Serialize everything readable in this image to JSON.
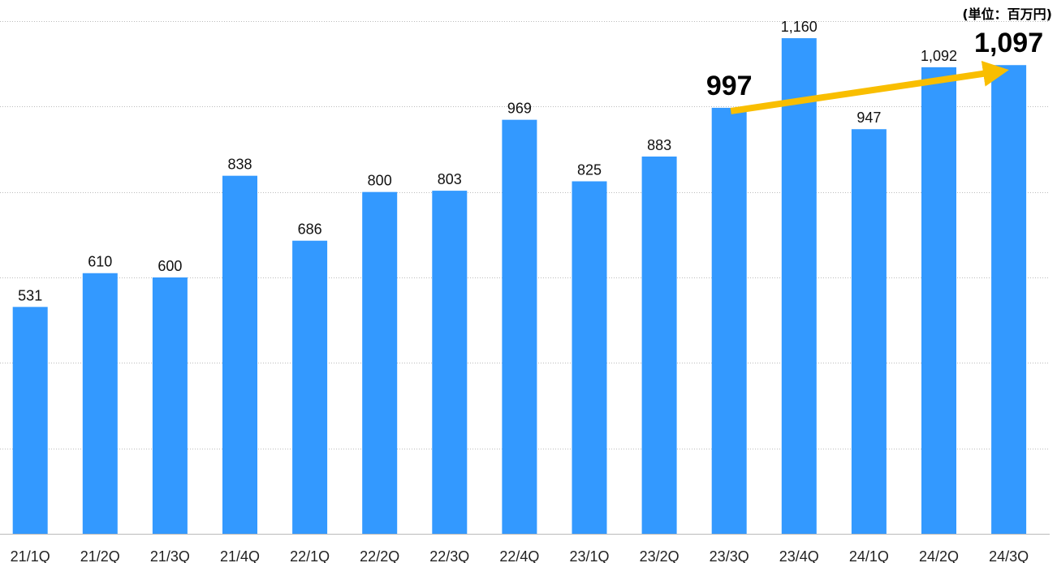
{
  "unit_label": "(単位：百万円)",
  "chart_data": {
    "type": "bar",
    "categories": [
      "21/1Q",
      "21/2Q",
      "21/3Q",
      "21/4Q",
      "22/1Q",
      "22/2Q",
      "22/3Q",
      "22/4Q",
      "23/1Q",
      "23/2Q",
      "23/3Q",
      "23/4Q",
      "24/1Q",
      "24/2Q",
      "24/3Q"
    ],
    "values": [
      531,
      610,
      600,
      838,
      686,
      800,
      803,
      969,
      825,
      883,
      997,
      1160,
      947,
      1092,
      1097
    ],
    "value_labels": [
      "531",
      "610",
      "600",
      "838",
      "686",
      "800",
      "803",
      "969",
      "825",
      "883",
      "997",
      "1,160",
      "947",
      "1,092",
      "1,097"
    ],
    "highlighted": [
      "23/3Q",
      "24/3Q"
    ],
    "ylim": [
      0,
      1200
    ],
    "grid": true,
    "gridline_values": [
      0,
      200,
      400,
      600,
      800,
      1000,
      1200
    ],
    "annotation": {
      "type": "arrow",
      "from": "23/3Q",
      "to": "24/3Q"
    }
  },
  "colors": {
    "bar": "#3399FF",
    "arrow": "#F9BE00",
    "grid": "#BBBBBB"
  }
}
